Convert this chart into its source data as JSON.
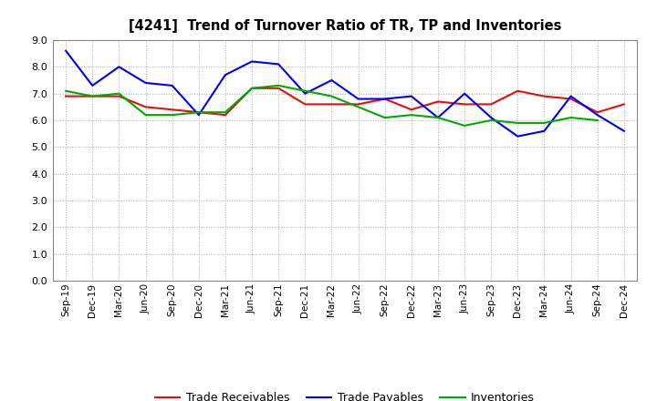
{
  "title": "[4241]  Trend of Turnover Ratio of TR, TP and Inventories",
  "x_labels": [
    "Sep-19",
    "Dec-19",
    "Mar-20",
    "Jun-20",
    "Sep-20",
    "Dec-20",
    "Mar-21",
    "Jun-21",
    "Sep-21",
    "Dec-21",
    "Mar-22",
    "Jun-22",
    "Sep-22",
    "Dec-22",
    "Mar-23",
    "Jun-23",
    "Sep-23",
    "Dec-23",
    "Mar-24",
    "Jun-24",
    "Sep-24",
    "Dec-24"
  ],
  "trade_receivables": [
    6.9,
    6.9,
    6.9,
    6.5,
    6.4,
    6.3,
    6.2,
    7.2,
    7.2,
    6.6,
    6.6,
    6.6,
    6.8,
    6.4,
    6.7,
    6.6,
    6.6,
    7.1,
    6.9,
    6.8,
    6.3,
    6.6
  ],
  "trade_payables": [
    8.6,
    7.3,
    8.0,
    7.4,
    7.3,
    6.2,
    7.7,
    8.2,
    8.1,
    7.0,
    7.5,
    6.8,
    6.8,
    6.9,
    6.1,
    7.0,
    6.1,
    5.4,
    5.6,
    6.9,
    6.2,
    5.6
  ],
  "inventories": [
    7.1,
    6.9,
    7.0,
    6.2,
    6.2,
    6.3,
    6.3,
    7.2,
    7.3,
    7.1,
    6.9,
    6.5,
    6.1,
    6.2,
    6.1,
    5.8,
    6.0,
    5.9,
    5.9,
    6.1,
    6.0,
    null
  ],
  "ylim": [
    0.0,
    9.0
  ],
  "yticks": [
    0.0,
    1.0,
    2.0,
    3.0,
    4.0,
    5.0,
    6.0,
    7.0,
    8.0,
    9.0
  ],
  "color_tr": "#dd1111",
  "color_tp": "#0000ee",
  "color_inv": "#00aa00",
  "legend_labels": [
    "Trade Receivables",
    "Trade Payables",
    "Inventories"
  ],
  "bg_color": "#ffffff",
  "grid_color": "#aaaaaa",
  "linewidth": 1.5
}
